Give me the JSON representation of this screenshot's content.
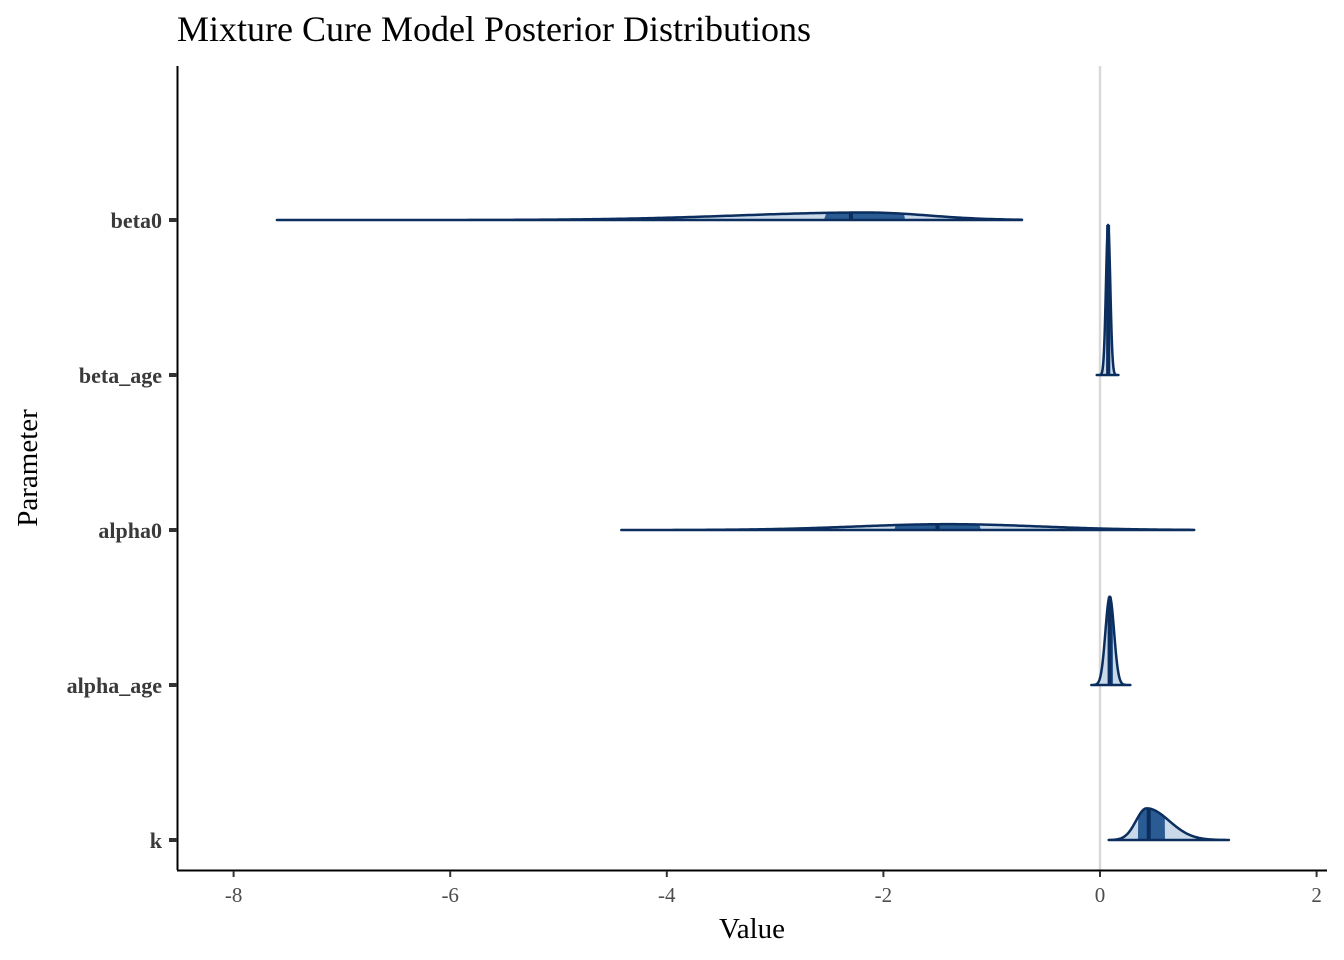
{
  "chart_data": {
    "type": "density-ridge",
    "title": "Mixture Cure Model Posterior Distributions",
    "xlabel": "Value",
    "ylabel": "Parameter",
    "xlim": [
      -8.5,
      2.2
    ],
    "x_ticks": [
      -8,
      -6,
      -4,
      -2,
      0,
      2
    ],
    "x_tick_labels": [
      "-8",
      "-6",
      "-4",
      "-2",
      "0",
      "2"
    ],
    "reference_line_x": 0,
    "grid": false,
    "legend": "none",
    "colors": {
      "outline": "#0b2e5e",
      "fill": "#c9d9ea",
      "interval_fill": "#2a5b93",
      "median": "#0b2e5e",
      "reference_line": "#d9d9d9",
      "axis": "#000000"
    },
    "series": [
      {
        "name": "beta0",
        "min": -7.6,
        "max": -0.72,
        "median": -2.3,
        "ci50": [
          -2.55,
          -1.8
        ],
        "mode": -2.15,
        "sd": 0.75,
        "skew": -1,
        "peak_height": 0.045
      },
      {
        "name": "beta_age",
        "min": -0.03,
        "max": 0.17,
        "median": 0.075,
        "ci50": [
          0.06,
          0.095
        ],
        "mode": 0.075,
        "sd": 0.02,
        "skew": 0,
        "peak_height": 0.9
      },
      {
        "name": "alpha0",
        "min": -4.42,
        "max": 0.87,
        "median": -1.5,
        "ci50": [
          -1.9,
          -1.1
        ],
        "mode": -1.4,
        "sd": 0.85,
        "skew": 0,
        "peak_height": 0.035
      },
      {
        "name": "alpha_age",
        "min": -0.08,
        "max": 0.28,
        "median": 0.09,
        "ci50": [
          0.07,
          0.12
        ],
        "mode": 0.09,
        "sd": 0.04,
        "skew": 0,
        "peak_height": 0.53
      },
      {
        "name": "k",
        "min": 0.08,
        "max": 1.19,
        "median": 0.45,
        "ci50": [
          0.35,
          0.6
        ],
        "mode": 0.43,
        "sd": 0.13,
        "skew": 1,
        "peak_height": 0.19
      }
    ]
  }
}
